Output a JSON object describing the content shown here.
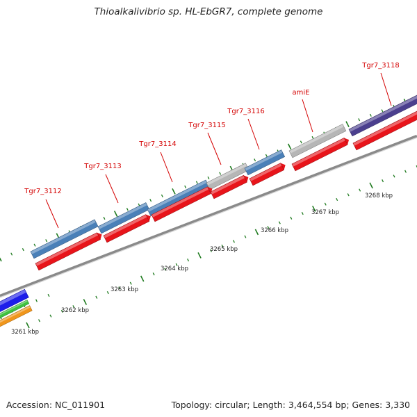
{
  "title": "Thioalkalivibrio sp. HL-EbGR7, complete genome",
  "footer": {
    "accession": "Accession: NC_011901",
    "summary": "Topology: circular; Length: 3,464,554 bp; Genes: 3,330"
  },
  "colors": {
    "forward_gene": "#4a80b8",
    "reverse_gene": "#e8141a",
    "other_gene": "#b6b6b6",
    "purple_gene": "#4b3f8e",
    "blue_gene": "#1d1dea",
    "green_gene": "#3fc23f",
    "orange_gene": "#f0961c",
    "tick": "#1e7a1e",
    "label": "#d40000",
    "backbone": "#8a8a8a"
  },
  "scale_labels": [
    "3261 kbp",
    "3262 kbp",
    "3263 kbp",
    "3264 kbp",
    "3265 kbp",
    "3266 kbp",
    "3267 kbp",
    "3268 kbp"
  ],
  "gene_labels": [
    "Tgr7_3112",
    "Tgr7_3113",
    "Tgr7_3114",
    "Tgr7_3115",
    "Tgr7_3116",
    "amiE",
    "Tgr7_3118"
  ]
}
